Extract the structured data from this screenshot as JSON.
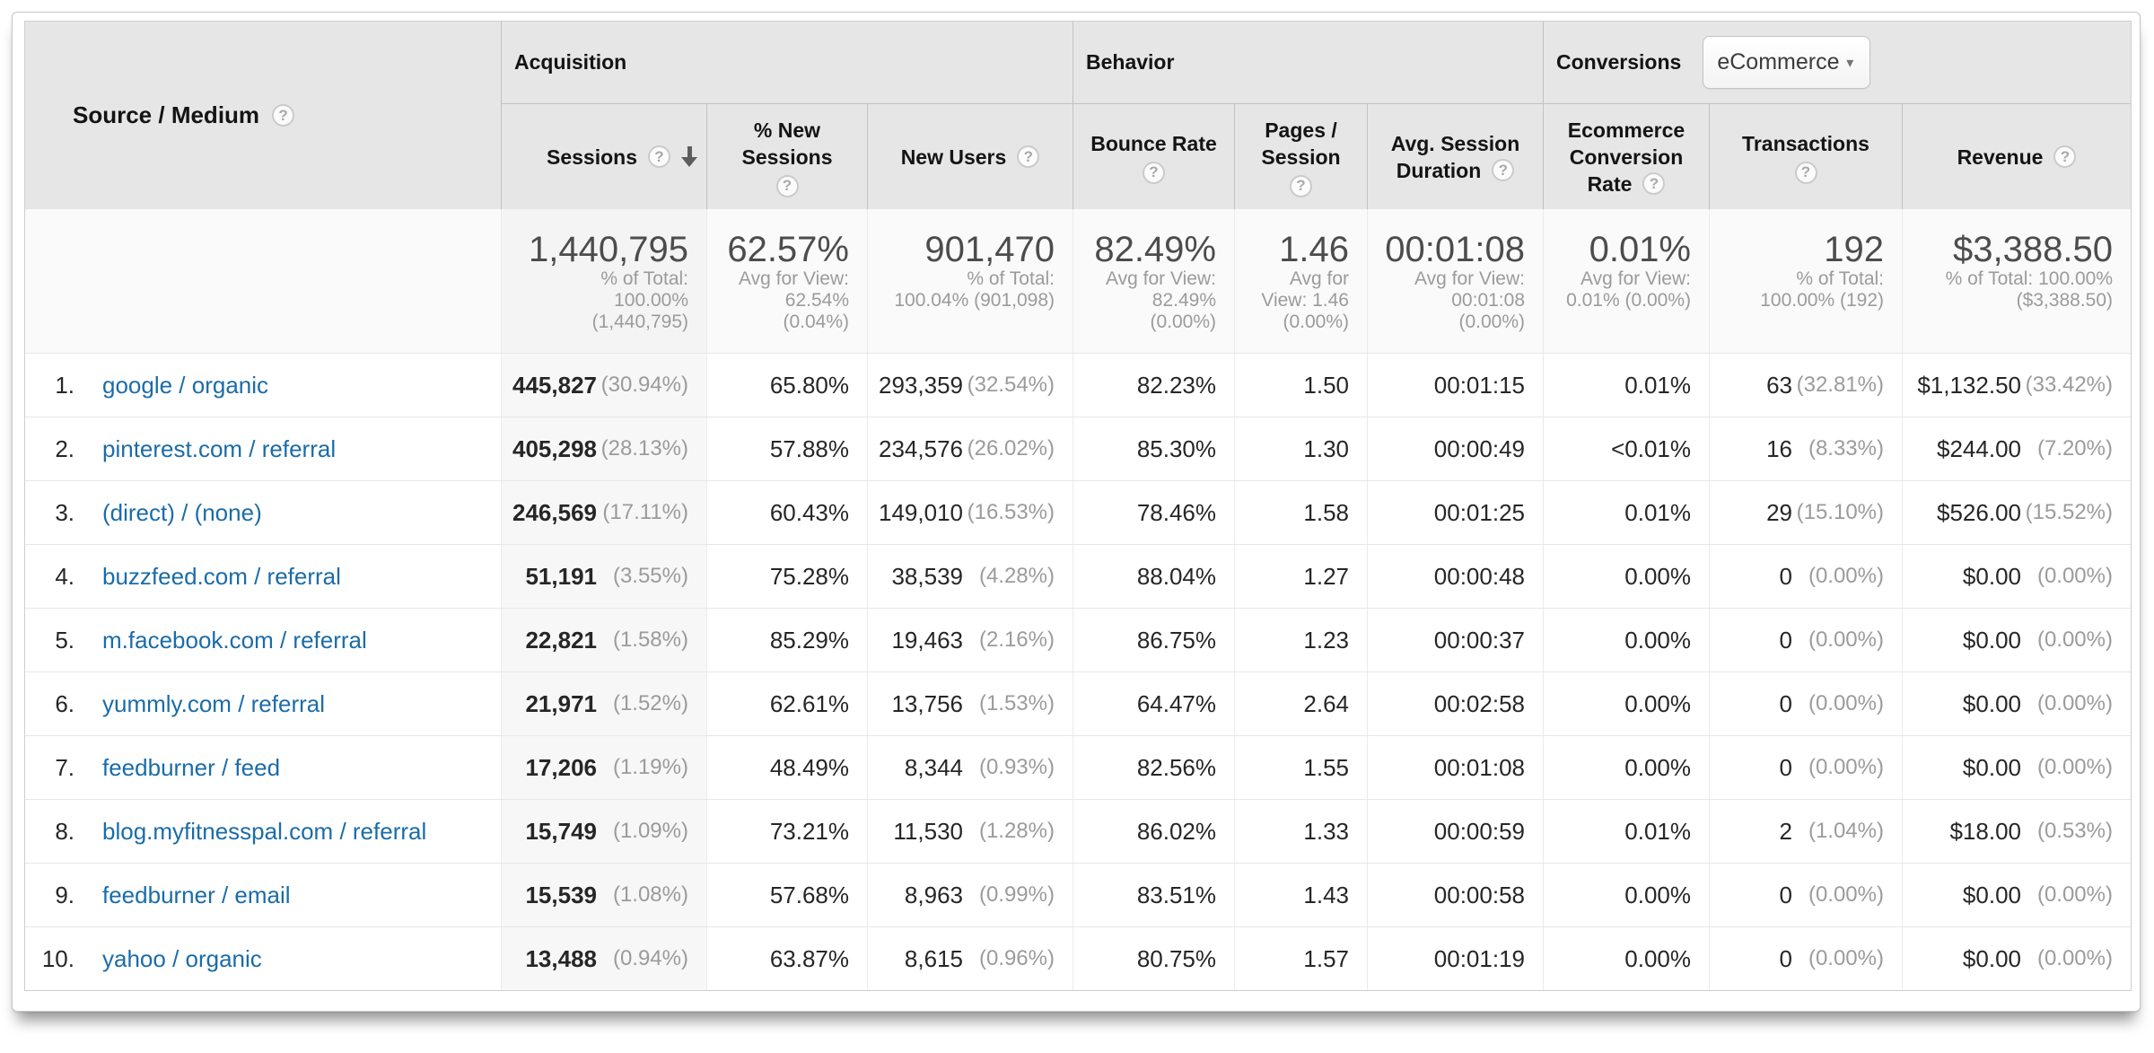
{
  "icons": {
    "help": "?",
    "sort_desc": "down-arrow",
    "dropdown_arrow": "▾"
  },
  "table": {
    "row_dimension": {
      "label": "Source / Medium"
    },
    "groups": {
      "acquisition": "Acquisition",
      "behavior": "Behavior",
      "conversions": "Conversions"
    },
    "conversions_dropdown": {
      "value": "eCommerce"
    },
    "columns": {
      "sessions": {
        "label": "Sessions"
      },
      "pct_new": {
        "line1": "% New",
        "line2": "Sessions"
      },
      "new_users": {
        "label": "New Users"
      },
      "bounce": {
        "label": "Bounce Rate"
      },
      "pages": {
        "line1": "Pages /",
        "line2": "Session"
      },
      "duration": {
        "line1": "Avg. Session",
        "line2": "Duration"
      },
      "ecomm": {
        "line1": "Ecommerce",
        "line2": "Conversion",
        "line3": "Rate"
      },
      "transactions": {
        "label": "Transactions"
      },
      "revenue": {
        "label": "Revenue"
      }
    },
    "totals": {
      "sessions": {
        "big": "1,440,795",
        "small": [
          "% of Total:",
          "100.00%",
          "(1,440,795)"
        ]
      },
      "pct_new": {
        "big": "62.57%",
        "small": [
          "Avg for View:",
          "62.54%",
          "(0.04%)"
        ]
      },
      "new_users": {
        "big": "901,470",
        "small": [
          "% of Total:",
          "100.04% (901,098)"
        ]
      },
      "bounce": {
        "big": "82.49%",
        "small": [
          "Avg for View:",
          "82.49%",
          "(0.00%)"
        ]
      },
      "pages": {
        "big": "1.46",
        "small": [
          "Avg for",
          "View: 1.46",
          "(0.00%)"
        ]
      },
      "duration": {
        "big": "00:01:08",
        "small": [
          "Avg for View:",
          "00:01:08",
          "(0.00%)"
        ]
      },
      "ecomm": {
        "big": "0.01%",
        "small": [
          "Avg for View:",
          "0.01% (0.00%)"
        ]
      },
      "transactions": {
        "big": "192",
        "small": [
          "% of Total:",
          "100.00% (192)"
        ]
      },
      "revenue": {
        "big": "$3,388.50",
        "small": [
          "% of Total: 100.00%",
          "($3,388.50)"
        ]
      }
    },
    "rows": [
      {
        "rank": "1.",
        "source": "google / organic",
        "sessions": "445,827",
        "sessions_pct": "(30.94%)",
        "pct_new": "65.80%",
        "new_users": "293,359",
        "new_users_pct": "(32.54%)",
        "bounce": "82.23%",
        "pages": "1.50",
        "duration": "00:01:15",
        "ecomm": "0.01%",
        "transactions": "63",
        "transactions_pct": "(32.81%)",
        "revenue": "$1,132.50",
        "revenue_pct": "(33.42%)"
      },
      {
        "rank": "2.",
        "source": "pinterest.com / referral",
        "sessions": "405,298",
        "sessions_pct": "(28.13%)",
        "pct_new": "57.88%",
        "new_users": "234,576",
        "new_users_pct": "(26.02%)",
        "bounce": "85.30%",
        "pages": "1.30",
        "duration": "00:00:49",
        "ecomm": "<0.01%",
        "transactions": "16",
        "transactions_pct": "(8.33%)",
        "revenue": "$244.00",
        "revenue_pct": "(7.20%)"
      },
      {
        "rank": "3.",
        "source": "(direct) / (none)",
        "sessions": "246,569",
        "sessions_pct": "(17.11%)",
        "pct_new": "60.43%",
        "new_users": "149,010",
        "new_users_pct": "(16.53%)",
        "bounce": "78.46%",
        "pages": "1.58",
        "duration": "00:01:25",
        "ecomm": "0.01%",
        "transactions": "29",
        "transactions_pct": "(15.10%)",
        "revenue": "$526.00",
        "revenue_pct": "(15.52%)"
      },
      {
        "rank": "4.",
        "source": "buzzfeed.com / referral",
        "sessions": "51,191",
        "sessions_pct": "(3.55%)",
        "pct_new": "75.28%",
        "new_users": "38,539",
        "new_users_pct": "(4.28%)",
        "bounce": "88.04%",
        "pages": "1.27",
        "duration": "00:00:48",
        "ecomm": "0.00%",
        "transactions": "0",
        "transactions_pct": "(0.00%)",
        "revenue": "$0.00",
        "revenue_pct": "(0.00%)"
      },
      {
        "rank": "5.",
        "source": "m.facebook.com / referral",
        "sessions": "22,821",
        "sessions_pct": "(1.58%)",
        "pct_new": "85.29%",
        "new_users": "19,463",
        "new_users_pct": "(2.16%)",
        "bounce": "86.75%",
        "pages": "1.23",
        "duration": "00:00:37",
        "ecomm": "0.00%",
        "transactions": "0",
        "transactions_pct": "(0.00%)",
        "revenue": "$0.00",
        "revenue_pct": "(0.00%)"
      },
      {
        "rank": "6.",
        "source": "yummly.com / referral",
        "sessions": "21,971",
        "sessions_pct": "(1.52%)",
        "pct_new": "62.61%",
        "new_users": "13,756",
        "new_users_pct": "(1.53%)",
        "bounce": "64.47%",
        "pages": "2.64",
        "duration": "00:02:58",
        "ecomm": "0.00%",
        "transactions": "0",
        "transactions_pct": "(0.00%)",
        "revenue": "$0.00",
        "revenue_pct": "(0.00%)"
      },
      {
        "rank": "7.",
        "source": "feedburner / feed",
        "sessions": "17,206",
        "sessions_pct": "(1.19%)",
        "pct_new": "48.49%",
        "new_users": "8,344",
        "new_users_pct": "(0.93%)",
        "bounce": "82.56%",
        "pages": "1.55",
        "duration": "00:01:08",
        "ecomm": "0.00%",
        "transactions": "0",
        "transactions_pct": "(0.00%)",
        "revenue": "$0.00",
        "revenue_pct": "(0.00%)"
      },
      {
        "rank": "8.",
        "source": "blog.myfitnesspal.com / referral",
        "sessions": "15,749",
        "sessions_pct": "(1.09%)",
        "pct_new": "73.21%",
        "new_users": "11,530",
        "new_users_pct": "(1.28%)",
        "bounce": "86.02%",
        "pages": "1.33",
        "duration": "00:00:59",
        "ecomm": "0.01%",
        "transactions": "2",
        "transactions_pct": "(1.04%)",
        "revenue": "$18.00",
        "revenue_pct": "(0.53%)"
      },
      {
        "rank": "9.",
        "source": "feedburner / email",
        "sessions": "15,539",
        "sessions_pct": "(1.08%)",
        "pct_new": "57.68%",
        "new_users": "8,963",
        "new_users_pct": "(0.99%)",
        "bounce": "83.51%",
        "pages": "1.43",
        "duration": "00:00:58",
        "ecomm": "0.00%",
        "transactions": "0",
        "transactions_pct": "(0.00%)",
        "revenue": "$0.00",
        "revenue_pct": "(0.00%)"
      },
      {
        "rank": "10.",
        "source": "yahoo / organic",
        "sessions": "13,488",
        "sessions_pct": "(0.94%)",
        "pct_new": "63.87%",
        "new_users": "8,615",
        "new_users_pct": "(0.96%)",
        "bounce": "80.75%",
        "pages": "1.57",
        "duration": "00:01:19",
        "ecomm": "0.00%",
        "transactions": "0",
        "transactions_pct": "(0.00%)",
        "revenue": "$0.00",
        "revenue_pct": "(0.00%)"
      }
    ]
  }
}
